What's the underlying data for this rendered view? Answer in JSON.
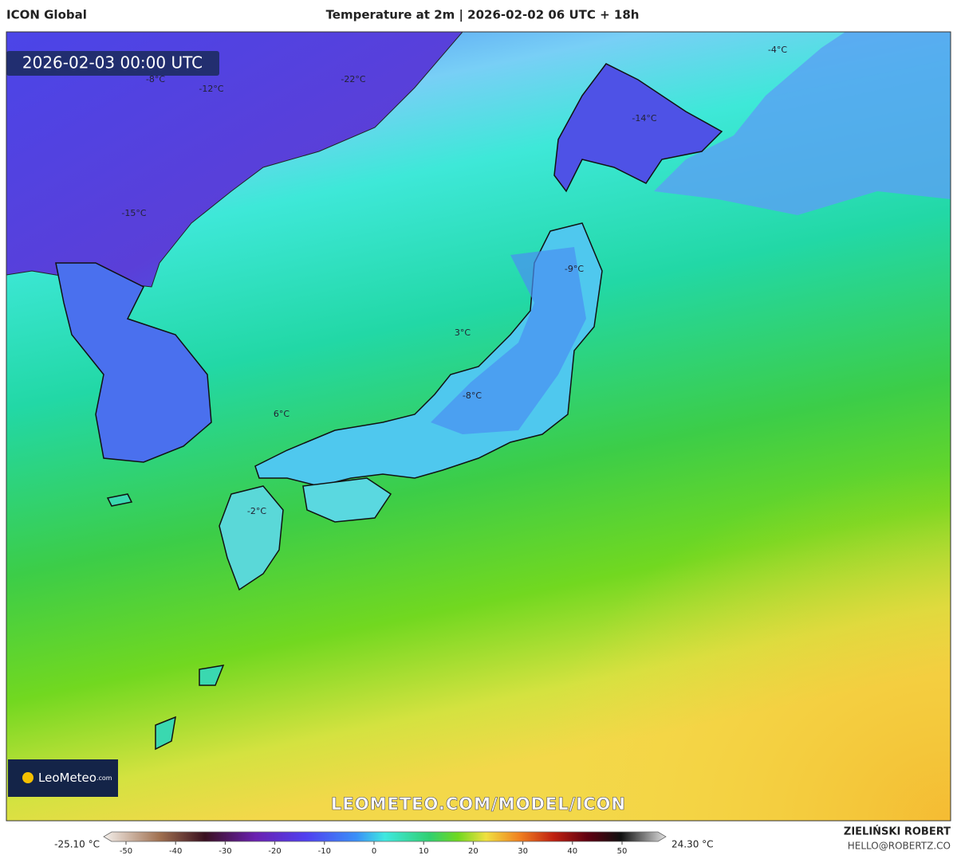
{
  "header": {
    "model": "ICON Global",
    "title": "Temperature at 2m | 2026-02-02 06 UTC + 18h"
  },
  "map": {
    "valid_time": "2026-02-03 00:00 UTC",
    "labels": [
      "-8°C",
      "-12°C",
      "-22°C",
      "-4°C",
      "-14°C",
      "-15°C",
      "-9°C",
      "3°C",
      "-8°C",
      "6°C",
      "-2°C"
    ],
    "watermark": "LEOMETEO.COM/MODEL/ICON",
    "logo": "LeoMeteo",
    "logo_suffix": ".com"
  },
  "colorbar": {
    "min_label": "-25.10 °C",
    "max_label": "24.30 °C",
    "ticks": [
      -50,
      -40,
      -30,
      -20,
      -10,
      0,
      10,
      20,
      30,
      40,
      50
    ]
  },
  "footer": {
    "author": "ZIELIŃSKI ROBERT",
    "contact": "HELLO@ROBERTZ.CO"
  }
}
